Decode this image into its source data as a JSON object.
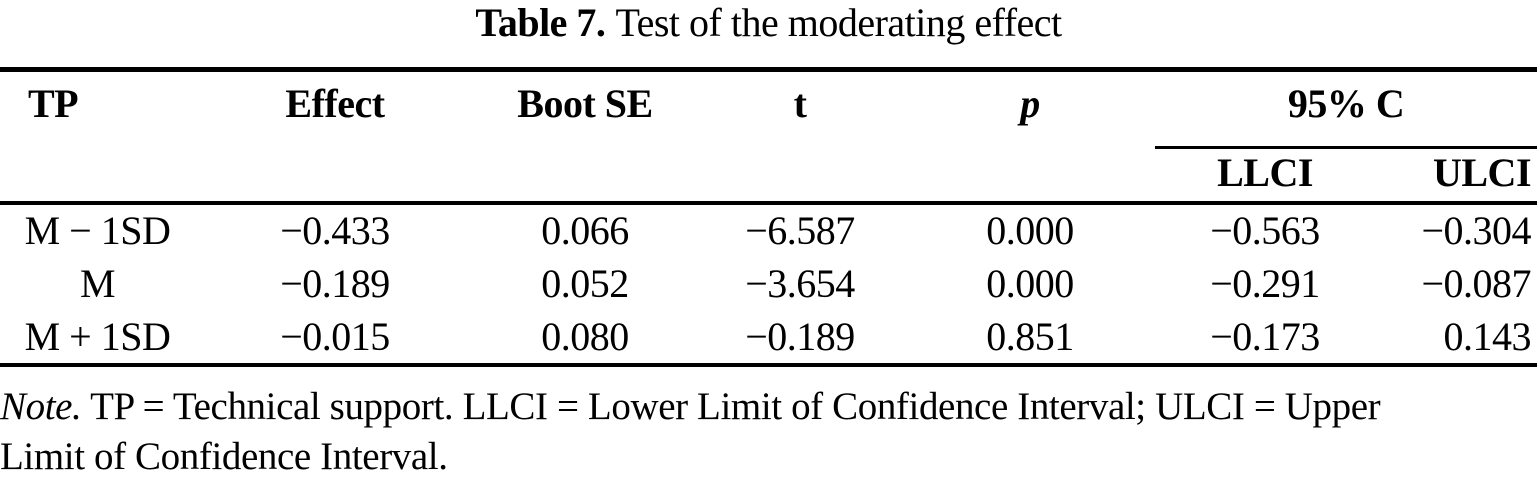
{
  "title": {
    "label": "Table 7.",
    "text": "Test of the moderating effect"
  },
  "table": {
    "headers": {
      "tp": "TP",
      "effect": "Effect",
      "boot_se": "Boot SE",
      "t": "t",
      "p": "p",
      "ci": "95% C",
      "llci": "LLCI",
      "ulci": "ULCI"
    },
    "rows": [
      [
        "M − 1SD",
        "−0.433",
        "0.066",
        "−6.587",
        "0.000",
        "−0.563",
        "−0.304"
      ],
      [
        "M",
        "−0.189",
        "0.052",
        "−3.654",
        "0.000",
        "−0.291",
        "−0.087"
      ],
      [
        "M + 1SD",
        "−0.015",
        "0.080",
        "−0.189",
        "0.851",
        "−0.173",
        "0.143"
      ]
    ]
  },
  "note": {
    "label": "Note.",
    "line1_rest": " TP = Technical support. LLCI = Lower Limit of Confidence Interval; ULCI = Upper",
    "line2": "Limit of Confidence Interval."
  },
  "colors": {
    "text": "#000000",
    "background": "#ffffff",
    "rule": "#000000"
  }
}
